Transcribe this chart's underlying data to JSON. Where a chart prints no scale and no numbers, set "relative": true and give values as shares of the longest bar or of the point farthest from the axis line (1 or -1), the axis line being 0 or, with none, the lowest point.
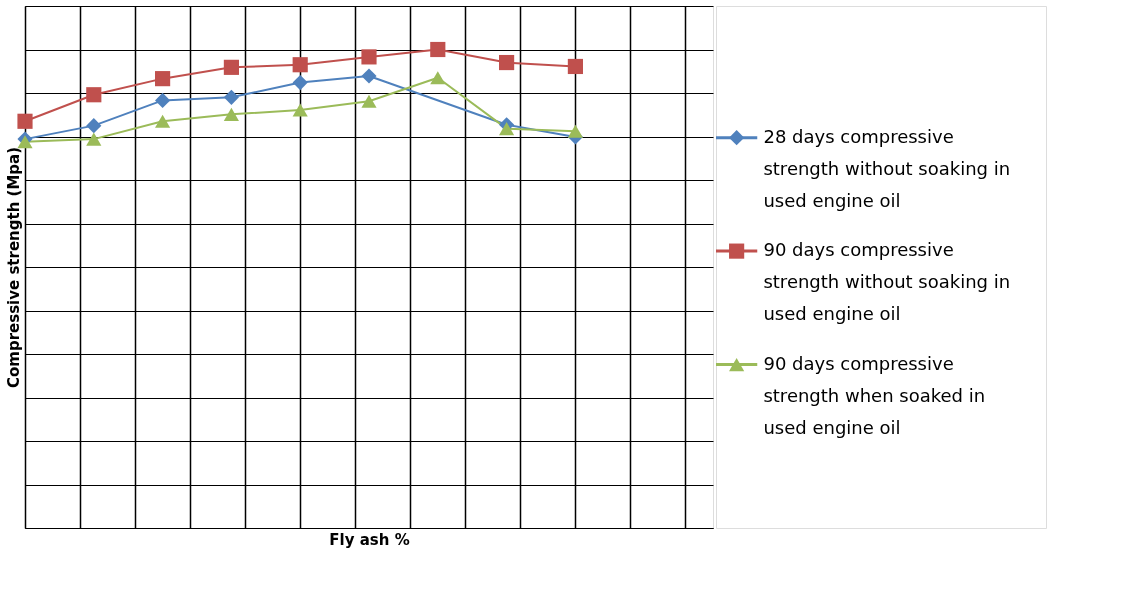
{
  "chart_data": {
    "type": "line",
    "relative": true,
    "xlabel": "Fly ash %",
    "ylabel": "Compressive strength (Mpa)",
    "categories": [
      null,
      null,
      null,
      null,
      null,
      null,
      null,
      null,
      null,
      null,
      null
    ],
    "grid": true,
    "legend": "right",
    "line_style": "solid",
    "series": [
      {
        "name": "28 days compressive strength without soaking in used engine oil",
        "color": "#4f81bd",
        "marker": "diamond",
        "values": [
          0.794,
          0.825,
          0.883,
          0.89,
          0.924,
          0.939,
          null,
          0.827,
          0.799,
          null,
          null
        ]
      },
      {
        "name": "90 days compressive strength without soaking in used engine oil",
        "color": "#c0504d",
        "marker": "square",
        "values": [
          0.835,
          0.896,
          0.933,
          0.959,
          0.965,
          0.983,
          1.0,
          0.97,
          0.961,
          null,
          null
        ]
      },
      {
        "name": "90 days compressive strength when soaked in used engine oil",
        "color": "#9bbb59",
        "marker": "triangle",
        "values": [
          0.788,
          0.794,
          0.835,
          0.851,
          0.861,
          0.881,
          0.935,
          0.818,
          0.812,
          null,
          null
        ]
      }
    ]
  }
}
